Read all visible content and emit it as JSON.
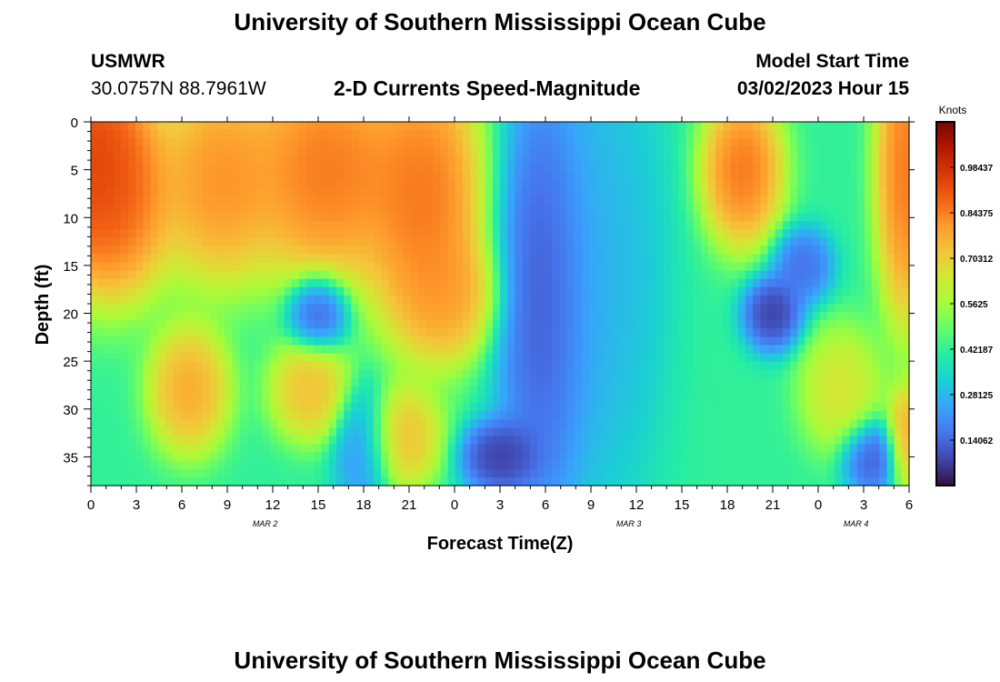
{
  "header": {
    "title": "University of Southern Mississippi Ocean Cube",
    "station": "USMWR",
    "coords": "30.0757N  88.7961W",
    "subtitle": "2-D Currents Speed-Magnitude",
    "model_label": "Model Start Time",
    "model_time": "03/02/2023 Hour 15"
  },
  "footer": {
    "title": "University of Southern Mississippi Ocean Cube"
  },
  "chart_data": {
    "type": "heatmap",
    "title": "2-D Currents Speed-Magnitude",
    "xlabel": "Forecast Time(Z)",
    "ylabel": "Depth (ft)",
    "x_tick_labels": [
      "0",
      "3",
      "6",
      "9",
      "12",
      "15",
      "18",
      "21",
      "0",
      "3",
      "6",
      "9",
      "12",
      "15",
      "18",
      "21",
      "0",
      "3",
      "6"
    ],
    "x_hours": [
      0,
      54
    ],
    "date_labels": [
      {
        "label": "MAR 2",
        "hour": 11.5
      },
      {
        "label": "MAR 3",
        "hour": 35.5
      },
      {
        "label": "MAR 4",
        "hour": 50.5
      }
    ],
    "y_ticks": [
      0,
      5,
      10,
      15,
      20,
      25,
      30,
      35
    ],
    "ylim": [
      0,
      38
    ],
    "colorbar": {
      "label": "Knots",
      "ticks": [
        "0.98437",
        "0.84375",
        "0.70312",
        "0.5625",
        "0.42187",
        "0.28125",
        "0.14062"
      ],
      "tick_values": [
        0.98437,
        0.84375,
        0.70312,
        0.5625,
        0.42187,
        0.28125,
        0.14062
      ],
      "range": [
        0,
        1.125
      ],
      "colors": [
        "#30123b",
        "#4145ab",
        "#4675ed",
        "#39a2fc",
        "#1bcfd4",
        "#24eca6",
        "#61fc6c",
        "#a4fc3b",
        "#d1e834",
        "#f3c63a",
        "#fe9b2d",
        "#f36315",
        "#d93806",
        "#b11901",
        "#7a0402"
      ]
    },
    "field_features": [
      {
        "hour": 0,
        "depth": 4,
        "speed": 1.05,
        "spread_h": 3,
        "spread_d": 8
      },
      {
        "hour": 1.5,
        "depth": 8,
        "speed": 0.95,
        "spread_h": 3,
        "spread_d": 8
      },
      {
        "hour": 8.5,
        "depth": 6,
        "speed": 0.9,
        "spread_h": 3,
        "spread_d": 8
      },
      {
        "hour": 15.5,
        "depth": 5,
        "speed": 0.95,
        "spread_h": 4,
        "spread_d": 9
      },
      {
        "hour": 22,
        "depth": 8,
        "speed": 0.95,
        "spread_h": 3,
        "spread_d": 11
      },
      {
        "hour": 23.5,
        "depth": 18,
        "speed": 0.85,
        "spread_h": 2.5,
        "spread_d": 5
      },
      {
        "hour": 6.5,
        "depth": 28,
        "speed": 0.85,
        "spread_h": 2,
        "spread_d": 5
      },
      {
        "hour": 14.5,
        "depth": 28,
        "speed": 0.8,
        "spread_h": 2,
        "spread_d": 4
      },
      {
        "hour": 20.5,
        "depth": 33,
        "speed": 0.8,
        "spread_h": 2,
        "spread_d": 4
      },
      {
        "hour": 49.5,
        "depth": 28,
        "speed": 0.7,
        "spread_h": 2,
        "spread_d": 5
      },
      {
        "hour": 43,
        "depth": 5,
        "speed": 0.95,
        "spread_h": 2,
        "spread_d": 6
      },
      {
        "hour": 53.8,
        "depth": 5,
        "speed": 0.95,
        "spread_h": 1.5,
        "spread_d": 12
      },
      {
        "hour": 53.8,
        "depth": 33,
        "speed": 0.85,
        "spread_h": 1,
        "spread_d": 4
      },
      {
        "hour": 15,
        "depth": 20,
        "speed": 0.05,
        "spread_h": 1.5,
        "spread_d": 3
      },
      {
        "hour": 18,
        "depth": 34,
        "speed": 0.15,
        "spread_h": 1.5,
        "spread_d": 5
      },
      {
        "hour": 27,
        "depth": 35,
        "speed": 0.0,
        "spread_h": 2,
        "spread_d": 3
      },
      {
        "hour": 30,
        "depth": 18,
        "speed": 0.05,
        "spread_h": 2.5,
        "spread_d": 18
      },
      {
        "hour": 34,
        "depth": 15,
        "speed": 0.25,
        "spread_h": 3,
        "spread_d": 20
      },
      {
        "hour": 45,
        "depth": 20,
        "speed": 0.0,
        "spread_h": 1.5,
        "spread_d": 3
      },
      {
        "hour": 47,
        "depth": 15,
        "speed": 0.1,
        "spread_h": 1.5,
        "spread_d": 3
      },
      {
        "hour": 51.5,
        "depth": 35,
        "speed": 0.05,
        "spread_h": 1.5,
        "spread_d": 3
      }
    ]
  }
}
